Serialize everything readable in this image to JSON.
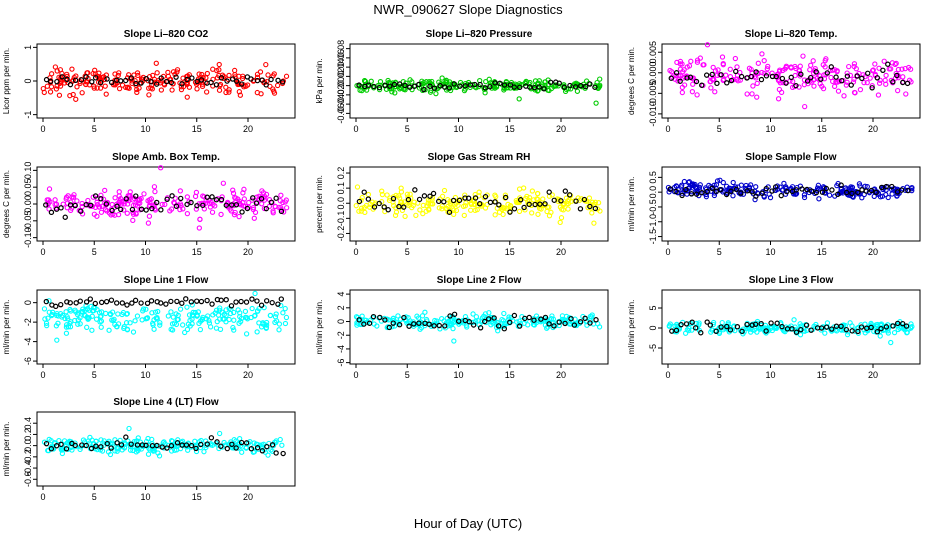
{
  "figure": {
    "title": "NWR_090627  Slope Diagnostics",
    "xlabel": "Hour of Day (UTC)"
  },
  "chart_data": [
    {
      "type": "scatter",
      "title": "Slope Li–820 CO2",
      "ylabel": "Licor ppm per min.",
      "color": "#ff0000",
      "xlim": [
        0,
        24
      ],
      "ylim": [
        -1.1,
        1.1
      ],
      "xticks": [
        0,
        5,
        10,
        15,
        20
      ],
      "yticks": [
        -1,
        0,
        1
      ],
      "yticklabels": [
        "-1",
        "0",
        "1"
      ],
      "main_center": 0,
      "main_spread": 0.35,
      "ref_spread": 0.1
    },
    {
      "type": "scatter",
      "title": "Slope Li–820 Pressure",
      "ylabel": "kPa per min.",
      "color": "#00cc00",
      "xlim": [
        0,
        24
      ],
      "ylim": [
        -0.07,
        0.09
      ],
      "xticks": [
        0,
        5,
        10,
        15,
        20
      ],
      "yticks": [
        -0.06,
        -0.04,
        -0.02,
        0,
        0.02,
        0.04,
        0.06,
        0.08
      ],
      "yticklabels": [
        "-0.06",
        "-0.04",
        "-0.02",
        "0.00",
        "0.02",
        "0.04",
        "0.06",
        "0.08"
      ],
      "main_center": 0,
      "main_spread": 0.012,
      "ref_spread": 0.006
    },
    {
      "type": "scatter",
      "title": "Slope Li–820 Temp.",
      "ylabel": "degrees C per min.",
      "color": "#ff00ff",
      "xlim": [
        0,
        24
      ],
      "ylim": [
        -0.011,
        0.007
      ],
      "xticks": [
        0,
        5,
        10,
        15,
        20
      ],
      "yticks": [
        -0.01,
        -0.005,
        0,
        0.005
      ],
      "yticklabels": [
        "-0.010",
        "-0.005",
        "0.000",
        "0.005"
      ],
      "main_center": -0.001,
      "main_spread": 0.0035,
      "ref_spread": 0.002
    },
    {
      "type": "scatter",
      "title": "Slope Amb. Box Temp.",
      "ylabel": "degrees C per min.",
      "color": "#ff00ff",
      "xlim": [
        0,
        24
      ],
      "ylim": [
        -0.11,
        0.11
      ],
      "xticks": [
        0,
        5,
        10,
        15,
        20
      ],
      "yticks": [
        -0.1,
        -0.05,
        0,
        0.05,
        0.1
      ],
      "yticklabels": [
        "-0.10",
        "-0.05",
        "0.00",
        "0.05",
        "0.10"
      ],
      "main_center": 0,
      "main_spread": 0.035,
      "ref_spread": 0.03
    },
    {
      "type": "scatter",
      "title": "Slope Gas Stream RH",
      "ylabel": "percent per min.",
      "color": "#ffff00",
      "xlim": [
        0,
        24
      ],
      "ylim": [
        -0.25,
        0.24
      ],
      "xticks": [
        0,
        5,
        10,
        15,
        20
      ],
      "yticks": [
        -0.2,
        -0.1,
        0,
        0.1,
        0.2
      ],
      "yticklabels": [
        "-0.2",
        "-0.1",
        "0.0",
        "0.1",
        "0.2"
      ],
      "main_center": 0,
      "main_spread": 0.07,
      "ref_spread": 0.06
    },
    {
      "type": "scatter",
      "title": "Slope Sample Flow",
      "ylabel": "ml/min per min.",
      "color": "#0000cc",
      "xlim": [
        0,
        24
      ],
      "ylim": [
        -1.65,
        0.85
      ],
      "xticks": [
        0,
        5,
        10,
        15,
        20
      ],
      "yticks": [
        -1.5,
        -1,
        -0.5,
        0,
        0.5
      ],
      "yticklabels": [
        "-1.5",
        "-1.0",
        "-0.5",
        "0.0",
        "0.5"
      ],
      "main_center": 0.05,
      "main_spread": 0.22,
      "ref_spread": 0.15
    },
    {
      "type": "scatter",
      "title": "Slope Line 1 Flow",
      "ylabel": "ml/min per min.",
      "color": "#00ffff",
      "xlim": [
        0,
        24
      ],
      "ylim": [
        -6.3,
        1.3
      ],
      "xticks": [
        0,
        5,
        10,
        15,
        20
      ],
      "yticks": [
        -6,
        -4,
        -2,
        0
      ],
      "yticklabels": [
        "-6",
        "-4",
        "-2",
        "0"
      ],
      "main_center": -1.6,
      "main_spread": 1.3,
      "ref_spread": 0.3
    },
    {
      "type": "scatter",
      "title": "Slope Line 2 Flow",
      "ylabel": "ml/min per min.",
      "color": "#00ffff",
      "xlim": [
        0,
        24
      ],
      "ylim": [
        -6.2,
        4.6
      ],
      "xticks": [
        0,
        5,
        10,
        15,
        20
      ],
      "yticks": [
        -6,
        -4,
        -2,
        0,
        2,
        4
      ],
      "yticklabels": [
        "-6",
        "-4",
        "-2",
        "0",
        "2",
        "4"
      ],
      "main_center": 0,
      "main_spread": 0.9,
      "ref_spread": 0.9
    },
    {
      "type": "scatter",
      "title": "Slope Line 3 Flow",
      "ylabel": "ml/min per min.",
      "color": "#00ffff",
      "xlim": [
        0,
        24
      ],
      "ylim": [
        -9,
        9.5
      ],
      "xticks": [
        0,
        5,
        10,
        15,
        20
      ],
      "yticks": [
        -5,
        0,
        5
      ],
      "yticklabels": [
        "-5",
        "0",
        "5"
      ],
      "main_center": 0,
      "main_spread": 1.4,
      "ref_spread": 1.2
    },
    {
      "type": "scatter",
      "title": "Slope Line 4 (LT) Flow",
      "ylabel": "ml/min per min.",
      "color": "#00ffff",
      "xlim": [
        0,
        24
      ],
      "ylim": [
        -0.72,
        0.6
      ],
      "xticks": [
        0,
        5,
        10,
        15,
        20
      ],
      "yticks": [
        -0.6,
        -0.4,
        -0.2,
        0,
        0.2,
        0.4
      ],
      "yticklabels": [
        "-0.6",
        "-0.4",
        "-0.2",
        "0.0",
        "0.2",
        "0.4"
      ],
      "main_center": 0,
      "main_spread": 0.12,
      "ref_spread": 0.1
    }
  ]
}
